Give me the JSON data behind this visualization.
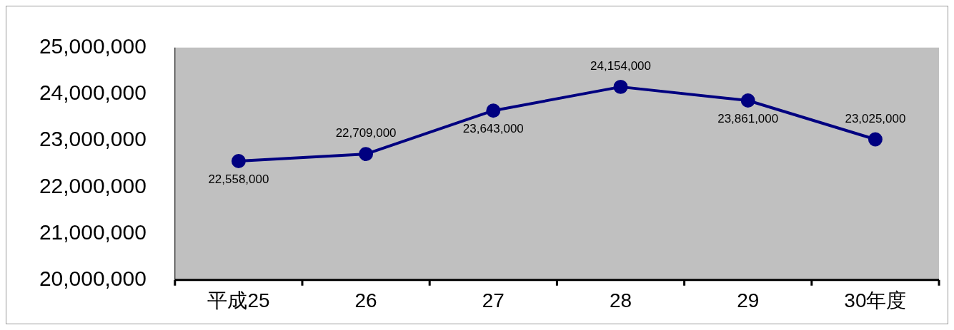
{
  "chart_data": {
    "type": "line",
    "categories": [
      "平成25",
      "26",
      "27",
      "28",
      "29",
      "30年度"
    ],
    "series": [
      {
        "color": "#000080",
        "values": [
          22558000,
          22709000,
          23643000,
          24154000,
          23861000,
          23025000
        ],
        "value_labels": [
          "22,558,000",
          "22,709,000",
          "23,643,000",
          "24,154,000",
          "23,861,000",
          "23,025,000"
        ]
      }
    ],
    "ylim": [
      20000000,
      25000000
    ],
    "yticks": [
      {
        "value": 20000000,
        "label": "20,000,000"
      },
      {
        "value": 21000000,
        "label": "21,000,000"
      },
      {
        "value": 22000000,
        "label": "22,000,000"
      },
      {
        "value": 23000000,
        "label": "23,000,000"
      },
      {
        "value": 24000000,
        "label": "24,000,000"
      },
      {
        "value": 25000000,
        "label": "25,000,000"
      }
    ],
    "marker": "circle",
    "grid": false,
    "legend": false
  }
}
